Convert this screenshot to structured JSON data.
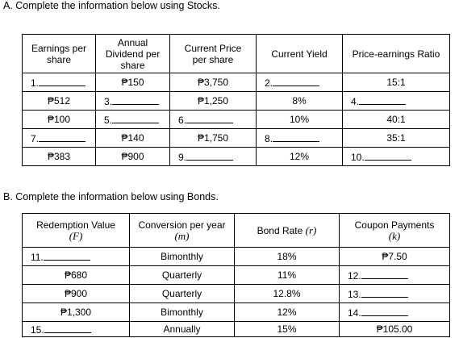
{
  "section_a": {
    "heading": "A.  Complete the information below using Stocks.",
    "headers": [
      "Earnings per share",
      "Annual Dividend per share",
      "Current Price per share",
      "Current Yield",
      "Price-earnings Ratio"
    ],
    "rows": [
      [
        {
          "item": "1."
        },
        "₱150",
        "₱3,750",
        {
          "item": "2."
        },
        "15:1"
      ],
      [
        "₱512",
        {
          "item": "3."
        },
        "₱1,250",
        "8%",
        {
          "item": "4."
        }
      ],
      [
        "₱100",
        {
          "item": "5."
        },
        {
          "item": "6."
        },
        "10%",
        "40:1"
      ],
      [
        {
          "item": "7."
        },
        "₱140",
        "₱1,750",
        {
          "item": "8."
        },
        "35:1"
      ],
      [
        "₱383",
        "₱900",
        {
          "item": "9."
        },
        "12%",
        {
          "item": "10."
        }
      ]
    ]
  },
  "section_b": {
    "heading": "B.  Complete the information below using Bonds.",
    "headers": [
      {
        "label": "Redemption Value",
        "symbol": "(F)"
      },
      {
        "label": "Conversion per year",
        "symbol": "(m)"
      },
      {
        "label": "Bond Rate",
        "symbol": "(r)"
      },
      {
        "label": "Coupon Payments",
        "symbol": "(k)"
      }
    ],
    "rows": [
      [
        {
          "item": "11."
        },
        "Bimonthly",
        "18%",
        "₱7.50"
      ],
      [
        "₱680",
        "Quarterly",
        "11%",
        {
          "item": "12."
        }
      ],
      [
        "₱900",
        "Quarterly",
        "12.8%",
        {
          "item": "13."
        }
      ],
      [
        "₱1,300",
        "Bimonthly",
        "12%",
        {
          "item": "14."
        }
      ],
      [
        {
          "item": "15."
        },
        "Annually",
        "15%",
        "₱105.00"
      ]
    ]
  }
}
